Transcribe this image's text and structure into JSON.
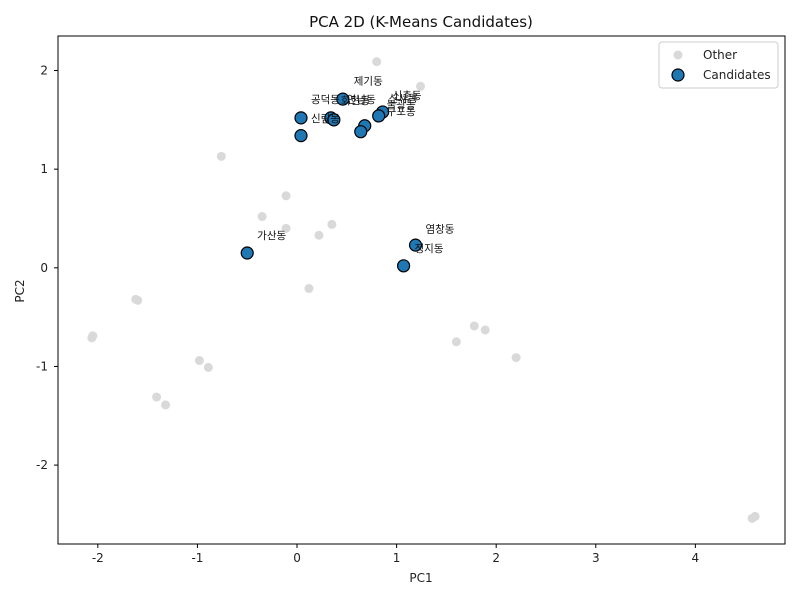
{
  "chart_data": {
    "type": "scatter",
    "title": "PCA 2D (K-Means Candidates)",
    "xlabel": "PC1",
    "ylabel": "PC2",
    "xlim": [
      -2.4,
      4.9
    ],
    "ylim": [
      -2.8,
      2.35
    ],
    "xticks": [
      -2,
      -1,
      0,
      1,
      2,
      3,
      4
    ],
    "yticks": [
      -2,
      -1,
      0,
      1,
      2
    ],
    "grid": false,
    "legend_position": "top-right",
    "series": [
      {
        "name": "Other",
        "color": "#d9d9d9",
        "points": [
          [
            0.8,
            2.09
          ],
          [
            1.24,
            1.84
          ],
          [
            -0.76,
            1.13
          ],
          [
            -0.11,
            0.73
          ],
          [
            -0.35,
            0.52
          ],
          [
            0.35,
            0.44
          ],
          [
            -0.11,
            0.4
          ],
          [
            0.22,
            0.33
          ],
          [
            0.12,
            -0.21
          ],
          [
            -1.62,
            -0.32
          ],
          [
            -1.6,
            -0.33
          ],
          [
            -2.05,
            -0.69
          ],
          [
            -2.06,
            -0.71
          ],
          [
            1.78,
            -0.59
          ],
          [
            1.89,
            -0.63
          ],
          [
            1.6,
            -0.75
          ],
          [
            2.2,
            -0.91
          ],
          [
            -0.98,
            -0.94
          ],
          [
            -0.89,
            -1.01
          ],
          [
            -1.41,
            -1.31
          ],
          [
            -1.32,
            -1.39
          ],
          [
            4.6,
            -2.52
          ],
          [
            4.57,
            -2.54
          ]
        ]
      },
      {
        "name": "Candidates",
        "color": "#1f77b4",
        "points": [
          {
            "x": 0.46,
            "y": 1.71,
            "label": "제기동"
          },
          {
            "x": 0.04,
            "y": 1.52,
            "label": "공덕동"
          },
          {
            "x": 0.34,
            "y": 1.52,
            "label": "회현동"
          },
          {
            "x": 0.37,
            "y": 1.5,
            "label": "신림동"
          },
          {
            "x": 0.04,
            "y": 1.34,
            "label": ""
          },
          {
            "x": 0.86,
            "y": 1.58,
            "label": "신촌동"
          },
          {
            "x": 0.82,
            "y": 1.54,
            "label": "신사동"
          },
          {
            "x": 0.68,
            "y": 1.44,
            "label": "연남동"
          },
          {
            "x": 0.64,
            "y": 1.38,
            "label": "불광동"
          },
          {
            "x": -0.5,
            "y": 0.15,
            "label": "가산동"
          },
          {
            "x": 1.19,
            "y": 0.23,
            "label": "염창동"
          },
          {
            "x": 1.07,
            "y": 0.02,
            "label": "정지동"
          }
        ]
      }
    ],
    "labels": [
      {
        "text": "제기동",
        "x": 0.57,
        "y": 1.86
      },
      {
        "text": "공덕동",
        "x": 0.14,
        "y": 1.67
      },
      {
        "text": "회현동",
        "x": 0.44,
        "y": 1.66
      },
      {
        "text": "연남동",
        "x": 0.5,
        "y": 1.67
      },
      {
        "text": "신림동",
        "x": 0.14,
        "y": 1.48
      },
      {
        "text": "신촌동",
        "x": 0.96,
        "y": 1.71
      },
      {
        "text": "신사동",
        "x": 0.92,
        "y": 1.68
      },
      {
        "text": "불광동",
        "x": 0.9,
        "y": 1.62
      },
      {
        "text": "구포동",
        "x": 0.9,
        "y": 1.55
      },
      {
        "text": "가산동",
        "x": -0.4,
        "y": 0.29
      },
      {
        "text": "염창동",
        "x": 1.29,
        "y": 0.36
      },
      {
        "text": "정지동",
        "x": 1.18,
        "y": 0.16
      }
    ]
  }
}
